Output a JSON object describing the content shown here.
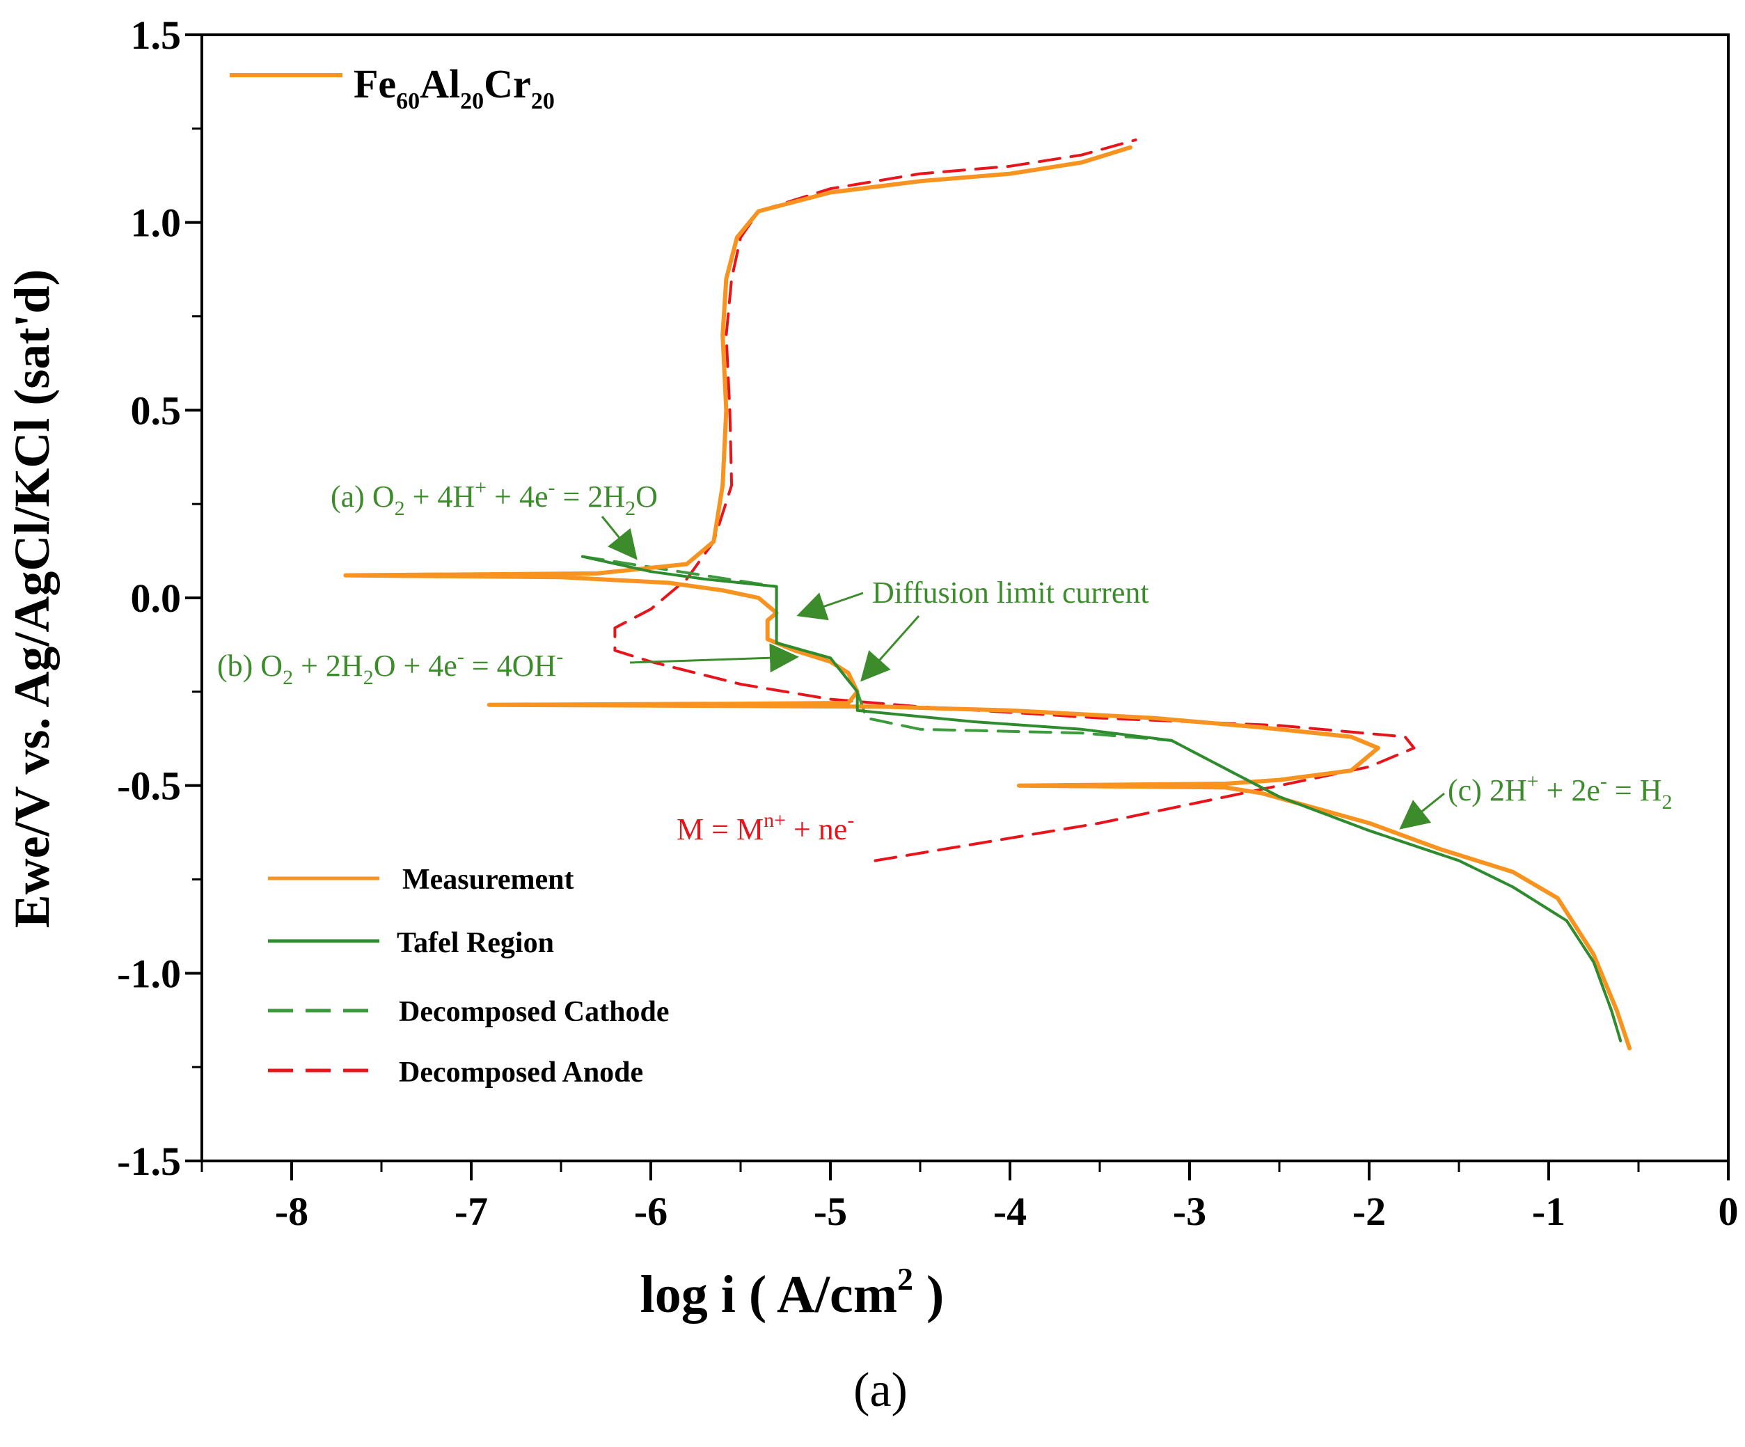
{
  "colors": {
    "measurement": "#f7931e",
    "tafel": "#2e8b2e",
    "cathode": "#3c9b3c",
    "anode": "#e8141c",
    "annotation_green": "#3c8c2c",
    "annotation_red": "#e8141c"
  },
  "chart_data": {
    "type": "line",
    "title_series": {
      "base": "Fe",
      "s1": "60",
      "e2": "Al",
      "s2": "20",
      "e3": "Cr",
      "s3": "20"
    },
    "xlabel": {
      "pre": "log i ( A/cm",
      "sup": "2",
      "post": " )"
    },
    "ylabel": "Ewe/V vs. Ag/AgCl/KCl (sat'd)",
    "panel_label": "(a)",
    "xlim": [
      -8.5,
      0
    ],
    "ylim": [
      -1.5,
      1.5
    ],
    "xticks": [
      -8,
      -7,
      -6,
      -5,
      -4,
      -3,
      -2,
      -1,
      0
    ],
    "xtick_labels": [
      "-8",
      "-7",
      "-6",
      "-5",
      "-4",
      "-3",
      "-2",
      "-1",
      "0"
    ],
    "yticks": [
      1.5,
      1.0,
      0.5,
      0.0,
      -0.5,
      -1.0,
      -1.5
    ],
    "ytick_labels": [
      "1.5",
      "1.0",
      "0.5",
      "0.0",
      "-0.5",
      "-1.0",
      "-1.5"
    ],
    "legend": [
      "Measurement",
      "Tafel Region",
      "Decomposed Cathode",
      "Decomposed Anode"
    ],
    "series": [
      {
        "name": "Measurement",
        "style": "solid",
        "points": [
          [
            -0.55,
            -1.2
          ],
          [
            -0.62,
            -1.1
          ],
          [
            -0.75,
            -0.95
          ],
          [
            -0.95,
            -0.8
          ],
          [
            -1.2,
            -0.73
          ],
          [
            -1.6,
            -0.67
          ],
          [
            -2.0,
            -0.6
          ],
          [
            -2.6,
            -0.52
          ],
          [
            -2.8,
            -0.505
          ],
          [
            -3.95,
            -0.5
          ],
          [
            -2.8,
            -0.495
          ],
          [
            -2.5,
            -0.485
          ],
          [
            -2.1,
            -0.46
          ],
          [
            -1.95,
            -0.4
          ],
          [
            -2.1,
            -0.37
          ],
          [
            -2.6,
            -0.345
          ],
          [
            -3.2,
            -0.32
          ],
          [
            -4.0,
            -0.3
          ],
          [
            -4.7,
            -0.29
          ],
          [
            -5.5,
            -0.288
          ],
          [
            -6.9,
            -0.285
          ],
          [
            -5.5,
            -0.282
          ],
          [
            -4.9,
            -0.28
          ],
          [
            -4.85,
            -0.25
          ],
          [
            -4.9,
            -0.2
          ],
          [
            -5.0,
            -0.17
          ],
          [
            -5.2,
            -0.14
          ],
          [
            -5.35,
            -0.11
          ],
          [
            -5.35,
            -0.06
          ],
          [
            -5.3,
            -0.04
          ],
          [
            -5.35,
            -0.02
          ],
          [
            -5.4,
            0.0
          ],
          [
            -5.6,
            0.02
          ],
          [
            -5.9,
            0.04
          ],
          [
            -6.5,
            0.055
          ],
          [
            -7.7,
            0.06
          ],
          [
            -6.3,
            0.065
          ],
          [
            -5.8,
            0.09
          ],
          [
            -5.65,
            0.15
          ],
          [
            -5.6,
            0.3
          ],
          [
            -5.58,
            0.5
          ],
          [
            -5.6,
            0.7
          ],
          [
            -5.58,
            0.85
          ],
          [
            -5.52,
            0.96
          ],
          [
            -5.4,
            1.03
          ],
          [
            -5.0,
            1.08
          ],
          [
            -4.5,
            1.11
          ],
          [
            -4.0,
            1.13
          ],
          [
            -3.6,
            1.16
          ],
          [
            -3.33,
            1.2
          ]
        ]
      },
      {
        "name": "Tafel Region",
        "style": "solid",
        "points": [
          [
            -6.38,
            0.11
          ],
          [
            -6.0,
            0.07
          ],
          [
            -5.7,
            0.05
          ],
          [
            -5.3,
            0.03
          ],
          [
            -5.3,
            -0.12
          ],
          [
            -5.0,
            -0.16
          ],
          [
            -4.85,
            -0.25
          ],
          [
            -4.85,
            -0.3
          ],
          [
            -4.2,
            -0.33
          ],
          [
            -3.6,
            -0.35
          ],
          [
            -3.1,
            -0.38
          ],
          [
            -2.5,
            -0.53
          ],
          [
            -2.0,
            -0.62
          ],
          [
            -1.5,
            -0.7
          ],
          [
            -1.2,
            -0.77
          ],
          [
            -0.9,
            -0.86
          ],
          [
            -0.75,
            -0.97
          ],
          [
            -0.65,
            -1.1
          ],
          [
            -0.6,
            -1.18
          ]
        ]
      },
      {
        "name": "Decomposed Cathode",
        "style": "dashed",
        "points": [
          [
            -6.38,
            0.11
          ],
          [
            -5.3,
            0.03
          ],
          [
            -5.3,
            -0.12
          ],
          [
            -5.0,
            -0.16
          ],
          [
            -4.85,
            -0.25
          ],
          [
            -4.8,
            -0.32
          ],
          [
            -4.5,
            -0.35
          ],
          [
            -3.6,
            -0.36
          ],
          [
            -3.1,
            -0.38
          ],
          [
            -2.5,
            -0.53
          ],
          [
            -2.0,
            -0.62
          ],
          [
            -1.5,
            -0.7
          ],
          [
            -1.2,
            -0.77
          ],
          [
            -0.9,
            -0.86
          ],
          [
            -0.75,
            -0.97
          ],
          [
            -0.65,
            -1.1
          ],
          [
            -0.6,
            -1.18
          ]
        ]
      },
      {
        "name": "Decomposed Anode",
        "style": "dashed",
        "points": [
          [
            -4.75,
            -0.7
          ],
          [
            -3.5,
            -0.6
          ],
          [
            -2.5,
            -0.5
          ],
          [
            -2.0,
            -0.45
          ],
          [
            -1.75,
            -0.4
          ],
          [
            -1.8,
            -0.37
          ],
          [
            -2.5,
            -0.34
          ],
          [
            -3.5,
            -0.32
          ],
          [
            -4.5,
            -0.29
          ],
          [
            -5.0,
            -0.27
          ],
          [
            -5.5,
            -0.23
          ],
          [
            -6.0,
            -0.17
          ],
          [
            -6.2,
            -0.14
          ],
          [
            -6.2,
            -0.08
          ],
          [
            -6.0,
            -0.03
          ],
          [
            -5.8,
            0.05
          ],
          [
            -5.65,
            0.15
          ],
          [
            -5.55,
            0.3
          ],
          [
            -5.56,
            0.5
          ],
          [
            -5.58,
            0.7
          ],
          [
            -5.55,
            0.85
          ],
          [
            -5.5,
            0.96
          ],
          [
            -5.4,
            1.03
          ],
          [
            -5.0,
            1.09
          ],
          [
            -4.5,
            1.13
          ],
          [
            -4.0,
            1.15
          ],
          [
            -3.6,
            1.18
          ],
          [
            -3.3,
            1.22
          ]
        ]
      }
    ],
    "annotations": {
      "a": {
        "pre": "(a) O",
        "s1": "2",
        "mid1": " + 4H",
        "sup1": "+",
        "mid2": " + 4e",
        "sup2": "-",
        "mid3": " = 2H",
        "s2": "2",
        "post": "O"
      },
      "diffusion": "Diffusion limit current",
      "b": {
        "pre": "(b) O",
        "s1": "2",
        "mid1": " + 2H",
        "s2": "2",
        "mid2": "O + 4e",
        "sup1": "-",
        "mid3": " = 4OH",
        "sup2": "-"
      },
      "c": {
        "pre": "(c) 2H",
        "sup1": "+",
        "mid1": " + 2e",
        "sup2": "-",
        "mid2": " = H",
        "s1": "2"
      },
      "m": {
        "pre": "M = M",
        "sup1": "n+",
        "mid1": " + ne",
        "sup2": "-"
      }
    }
  }
}
